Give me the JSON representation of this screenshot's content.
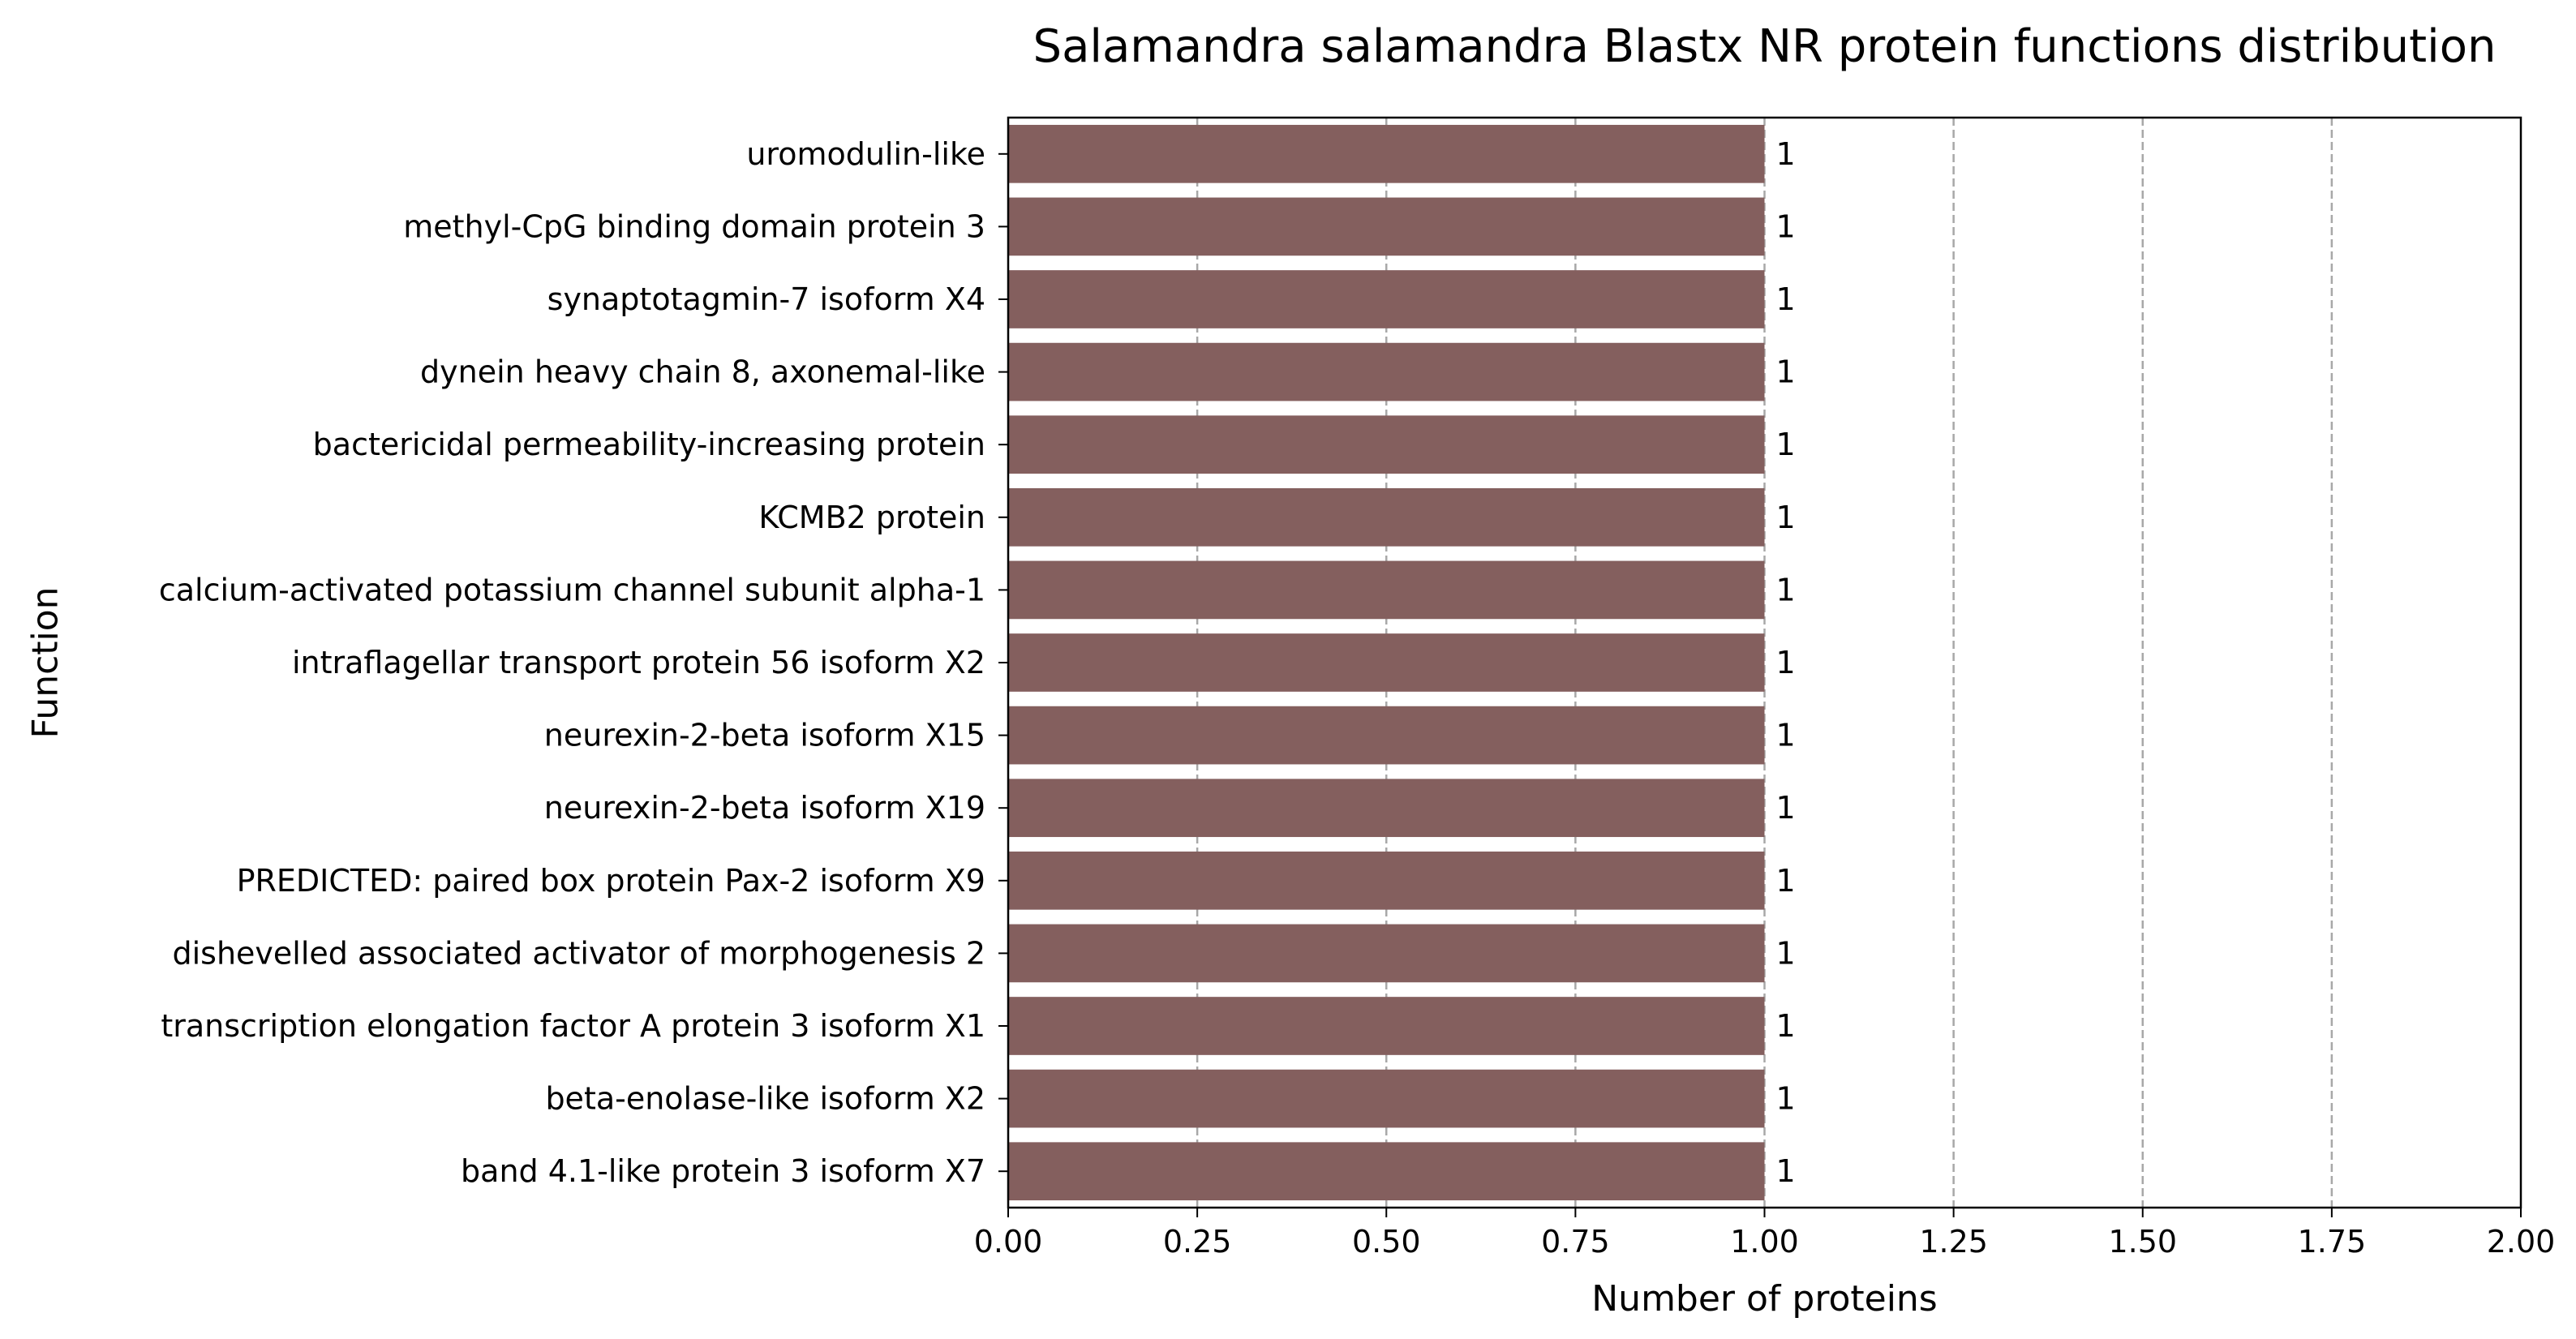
{
  "chart_data": {
    "type": "bar",
    "orientation": "horizontal",
    "title": "Salamandra salamandra Blastx NR protein functions distribution",
    "xlabel": "Number of proteins",
    "ylabel": "Function",
    "categories": [
      "uromodulin-like",
      "methyl-CpG binding domain protein 3",
      "synaptotagmin-7 isoform X4",
      "dynein heavy chain 8, axonemal-like",
      "bactericidal permeability-increasing protein",
      "KCMB2 protein",
      "calcium-activated potassium channel subunit alpha-1",
      "intraflagellar transport protein 56 isoform X2",
      "neurexin-2-beta isoform X15",
      "neurexin-2-beta isoform X19",
      "PREDICTED: paired box protein Pax-2 isoform X9",
      "dishevelled associated activator of morphogenesis 2",
      "transcription elongation factor A protein 3 isoform X1",
      "beta-enolase-like isoform X2",
      "band 4.1-like protein 3 isoform X7"
    ],
    "values": [
      1,
      1,
      1,
      1,
      1,
      1,
      1,
      1,
      1,
      1,
      1,
      1,
      1,
      1,
      1
    ],
    "data_labels": [
      "1",
      "1",
      "1",
      "1",
      "1",
      "1",
      "1",
      "1",
      "1",
      "1",
      "1",
      "1",
      "1",
      "1",
      "1"
    ],
    "xlim": [
      0,
      2
    ],
    "xticks": [
      0,
      0.25,
      0.5,
      0.75,
      1,
      1.25,
      1.5,
      1.75,
      2
    ],
    "xtick_labels": [
      "0.00",
      "0.25",
      "0.50",
      "0.75",
      "1.00",
      "1.25",
      "1.50",
      "1.75",
      "2.00"
    ],
    "grid": "x-dashed",
    "bar_color": "#845f5e",
    "grid_color": "#a8a8a8"
  }
}
